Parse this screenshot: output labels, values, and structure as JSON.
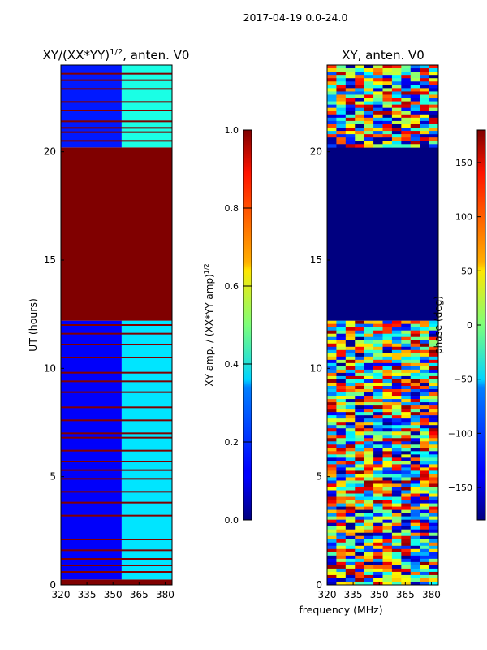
{
  "figure": {
    "suptitle": "2017-04-19 0.0-24.0",
    "xlabel": "frequency (MHz)"
  },
  "chart_data": [
    {
      "type": "heatmap",
      "title_main": "XY/(XX*YY)",
      "title_exp": "1/2",
      "title_tail": ", anten. V0",
      "xlabel": "",
      "ylabel": "UT (hours)",
      "xlim": [
        320,
        384
      ],
      "ylim": [
        0,
        24
      ],
      "xticks": [
        320,
        335,
        350,
        365,
        380
      ],
      "yticks": [
        0,
        5,
        10,
        15,
        20
      ],
      "colorbar": {
        "label_main": "XY amp. / (XX*YY amp)",
        "label_exp": "1/2",
        "range": [
          0.0,
          1.0
        ],
        "ticks": [
          "0.0",
          "0.2",
          "0.4",
          "0.6",
          "0.8",
          "1.0"
        ],
        "colormap": "jet"
      },
      "regions": [
        {
          "ut_start": 0.0,
          "ut_end": 0.25,
          "freq_start": 320,
          "freq_end": 384,
          "value": 1.0
        },
        {
          "ut_start": 0.25,
          "ut_end": 12.2,
          "freq_start": 320,
          "freq_end": 355,
          "value": 0.12
        },
        {
          "ut_start": 0.25,
          "ut_end": 12.2,
          "freq_start": 355,
          "freq_end": 384,
          "value": 0.35
        },
        {
          "ut_start": 12.2,
          "ut_end": 20.2,
          "freq_start": 320,
          "freq_end": 384,
          "value": 1.0
        },
        {
          "ut_start": 20.2,
          "ut_end": 24.0,
          "freq_start": 320,
          "freq_end": 355,
          "value": 0.15
        },
        {
          "ut_start": 20.2,
          "ut_end": 24.0,
          "freq_start": 355,
          "freq_end": 384,
          "value": 0.4
        }
      ],
      "flagged_ut_hours": [
        0.6,
        0.9,
        1.2,
        1.6,
        2.1,
        3.2,
        3.8,
        4.3,
        4.9,
        5.3,
        5.7,
        6.2,
        6.8,
        7.0,
        7.6,
        8.2,
        8.9,
        9.4,
        9.8,
        10.5,
        11.1,
        11.6,
        12.0,
        20.5,
        20.9,
        21.1,
        21.4,
        21.9,
        22.3,
        22.9,
        23.3,
        23.6
      ]
    },
    {
      "type": "heatmap",
      "title_main": "XY, anten. V0",
      "xlabel": "",
      "ylabel": "",
      "xlim": [
        320,
        384
      ],
      "ylim": [
        0,
        24
      ],
      "xticks": [
        320,
        335,
        350,
        365,
        380
      ],
      "yticks": [
        0,
        5,
        10,
        15,
        20
      ],
      "colorbar": {
        "label_main": "phase (deg)",
        "range": [
          -180,
          180
        ],
        "ticks": [
          "−150",
          "−100",
          "−50",
          "0",
          "50",
          "100",
          "150"
        ],
        "tick_values": [
          -150,
          -100,
          -50,
          0,
          50,
          100,
          150
        ],
        "colormap": "jet"
      },
      "regions": [
        {
          "ut_start": 0.0,
          "ut_end": 12.2,
          "freq_start": 320,
          "freq_end": 384,
          "value": "random"
        },
        {
          "ut_start": 12.2,
          "ut_end": 20.2,
          "freq_start": 320,
          "freq_end": 384,
          "value": -180
        },
        {
          "ut_start": 20.2,
          "ut_end": 24.0,
          "freq_start": 320,
          "freq_end": 384,
          "value": "random"
        }
      ]
    }
  ]
}
